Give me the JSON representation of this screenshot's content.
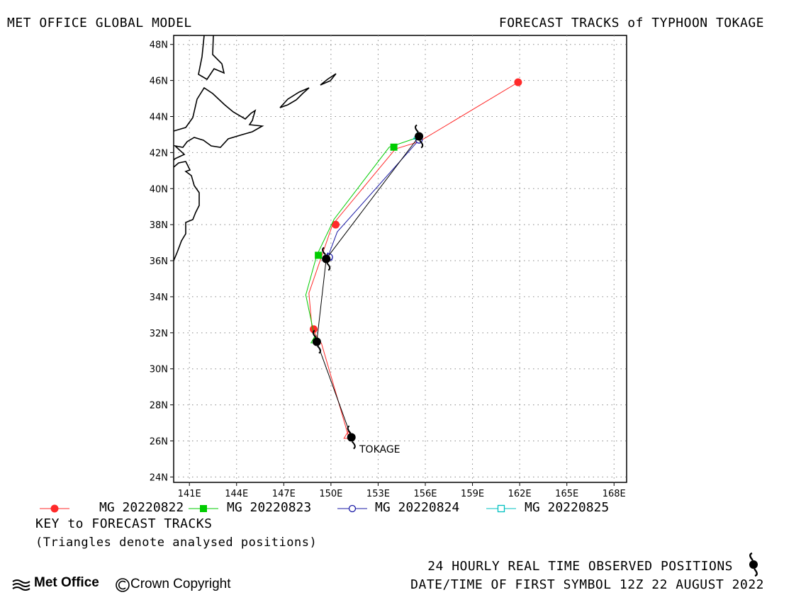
{
  "header": {
    "left": "MET OFFICE GLOBAL MODEL",
    "right": "FORECAST TRACKS of TYPHOON TOKAGE"
  },
  "chart_data": {
    "type": "map",
    "lon_range": [
      140,
      168.8
    ],
    "lat_range": [
      23.7,
      48.5
    ],
    "x_ticks": [
      "141E",
      "144E",
      "147E",
      "150E",
      "153E",
      "156E",
      "159E",
      "162E",
      "165E",
      "168E"
    ],
    "y_ticks": [
      "24N",
      "26N",
      "28N",
      "30N",
      "32N",
      "34N",
      "36N",
      "38N",
      "40N",
      "42N",
      "44N",
      "46N",
      "48N"
    ],
    "grid": "dotted",
    "storm_label": "TOKAGE",
    "observed_track": {
      "name": "24 HOURLY REAL TIME OBSERVED POSITIONS",
      "color": "#000000",
      "points": [
        [
          151.3,
          26.2
        ],
        [
          149.1,
          31.5
        ],
        [
          149.7,
          36.1
        ],
        [
          155.6,
          42.9
        ]
      ]
    },
    "forecast_tracks": [
      {
        "name": "MG 20220822",
        "color": "#ff2a2a",
        "marker": "filled-circle",
        "track": [
          [
            151.1,
            26.3
          ],
          [
            149.4,
            31.4
          ],
          [
            148.8,
            32.2
          ],
          [
            148.6,
            34.2
          ],
          [
            150.1,
            38.0
          ],
          [
            154.1,
            42.2
          ],
          [
            155.6,
            42.6
          ],
          [
            161.9,
            45.9
          ]
        ],
        "markers": [
          [
            148.9,
            32.2
          ],
          [
            150.3,
            38.0
          ],
          [
            161.9,
            45.9
          ]
        ]
      },
      {
        "name": "MG 20220823",
        "color": "#00cc00",
        "marker": "filled-square",
        "track": [
          [
            149.0,
            31.6
          ],
          [
            148.4,
            34.1
          ],
          [
            149.1,
            36.3
          ],
          [
            150.2,
            38.3
          ],
          [
            153.7,
            42.3
          ],
          [
            155.4,
            42.8
          ]
        ],
        "markers": [
          [
            149.2,
            36.3
          ],
          [
            154.0,
            42.3
          ]
        ]
      },
      {
        "name": "MG 20220824",
        "color": "#1a1aa6",
        "marker": "open-circle",
        "track": [
          [
            149.8,
            36.2
          ],
          [
            150.4,
            37.6
          ],
          [
            155.6,
            42.7
          ]
        ],
        "markers": [
          [
            149.9,
            36.2
          ],
          [
            155.6,
            42.7
          ]
        ]
      },
      {
        "name": "MG 20220825",
        "color": "#00c0c0",
        "marker": "open-square",
        "track": [
          [
            155.5,
            42.9
          ]
        ],
        "markers": []
      }
    ]
  },
  "legend": [
    {
      "label": "MG 20220822",
      "color": "#ff2a2a",
      "marker": "filled-circle"
    },
    {
      "label": "MG 20220823",
      "color": "#00cc00",
      "marker": "filled-square"
    },
    {
      "label": "MG 20220824",
      "color": "#1a1aa6",
      "marker": "open-circle"
    },
    {
      "label": "MG 20220825",
      "color": "#00c0c0",
      "marker": "open-square"
    }
  ],
  "key": {
    "title": "KEY to FORECAST TRACKS",
    "note": "(Triangles denote analysed positions)"
  },
  "footer": {
    "observed": "24 HOURLY REAL TIME OBSERVED POSITIONS",
    "datetime": "DATE/TIME OF FIRST SYMBOL 12Z 22 AUGUST 2022",
    "logo_text": "Met Office",
    "copyright": "Crown Copyright"
  }
}
